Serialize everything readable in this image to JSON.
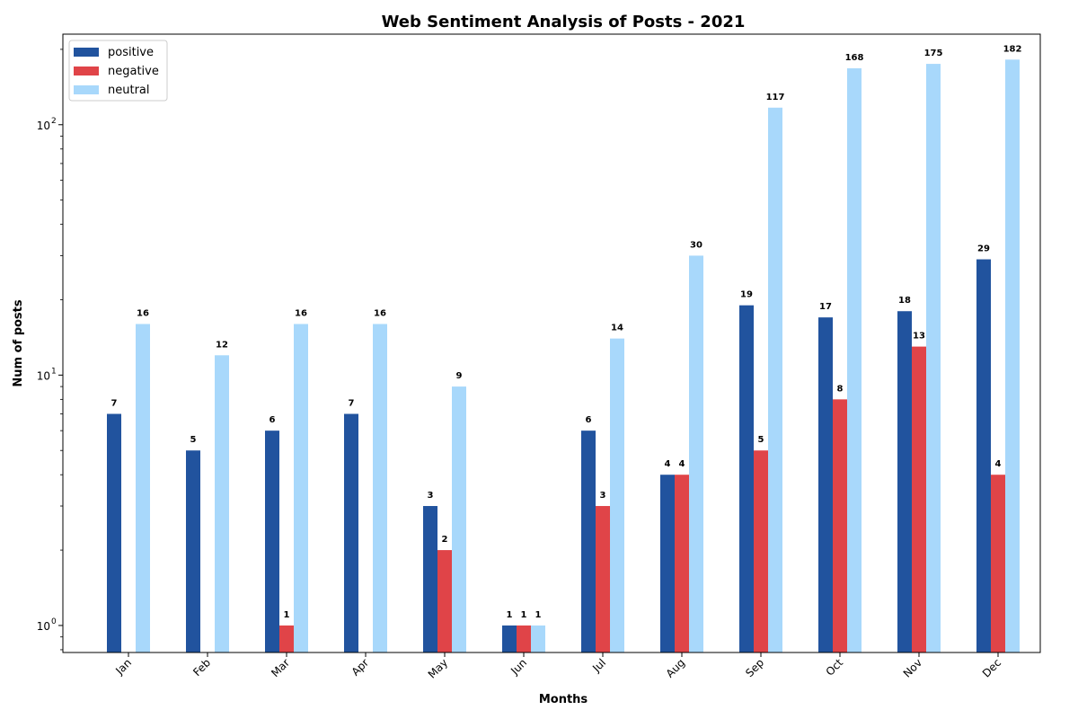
{
  "chart_data": {
    "type": "bar",
    "title": "Web Sentiment Analysis of Posts - 2021",
    "xlabel": "Months",
    "ylabel": "Num of posts",
    "yscale": "log",
    "ylim": [
      0.78,
      230
    ],
    "yticks": [
      {
        "value": 1,
        "base": "10",
        "exp": "0"
      },
      {
        "value": 10,
        "base": "10",
        "exp": "1"
      },
      {
        "value": 100,
        "base": "10",
        "exp": "2"
      }
    ],
    "legend_position": "top-left",
    "categories": [
      "Jan",
      "Feb",
      "Mar",
      "Apr",
      "May",
      "Jun",
      "Jul",
      "Aug",
      "Sep",
      "Oct",
      "Nov",
      "Dec"
    ],
    "series": [
      {
        "name": "positive",
        "color": "#21539e",
        "values": [
          7,
          5,
          6,
          7,
          3,
          1,
          6,
          4,
          19,
          17,
          18,
          29
        ]
      },
      {
        "name": "negative",
        "color": "#e04448",
        "values": [
          0,
          0,
          1,
          0,
          2,
          1,
          3,
          4,
          5,
          8,
          13,
          4
        ]
      },
      {
        "name": "neutral",
        "color": "#a8d8fb",
        "values": [
          16,
          12,
          16,
          16,
          9,
          1,
          14,
          30,
          117,
          168,
          175,
          182
        ]
      }
    ]
  }
}
